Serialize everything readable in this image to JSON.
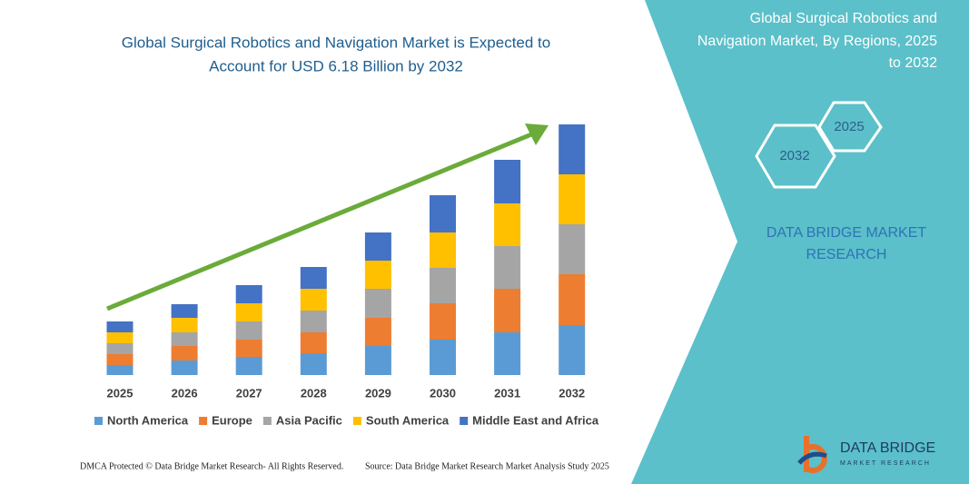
{
  "chart_data": {
    "type": "bar",
    "stacked": true,
    "title": [
      "Global Surgical Robotics and Navigation Market is Expected to",
      "Account for USD 6.18 Billion by 2032"
    ],
    "categories": [
      "2025",
      "2026",
      "2027",
      "2028",
      "2029",
      "2030",
      "2031",
      "2032"
    ],
    "series": [
      {
        "name": "North America",
        "color": "#5b9bd5",
        "values": [
          11,
          16,
          20,
          24,
          32,
          39,
          47,
          55
        ]
      },
      {
        "name": "Europe",
        "color": "#ed7d31",
        "values": [
          12,
          16,
          19,
          23,
          31,
          40,
          48,
          56
        ]
      },
      {
        "name": "Asia Pacific",
        "color": "#a5a5a5",
        "values": [
          12,
          15,
          20,
          24,
          32,
          39,
          47,
          55
        ]
      },
      {
        "name": "South America",
        "color": "#ffc000",
        "values": [
          12,
          16,
          20,
          24,
          31,
          39,
          47,
          55
        ]
      },
      {
        "name": "Middle East and Africa",
        "color": "#4472c4",
        "values": [
          12,
          15,
          20,
          24,
          31,
          41,
          48,
          55
        ]
      }
    ],
    "ylim": [
      0,
      276
    ]
  },
  "panel": {
    "title": [
      "Global Surgical Robotics and",
      "Navigation Market, By Regions, 2025",
      "to 2032"
    ],
    "hexagons": [
      "2025",
      "2032"
    ],
    "brand": [
      "DATA BRIDGE MARKET",
      "RESEARCH"
    ]
  },
  "logo": {
    "name": "DATA BRIDGE",
    "tagline": "MARKET RESEARCH"
  },
  "footer": {
    "left": "DMCA Protected © Data Bridge Market Research- All Rights Reserved.",
    "right": "Source: Data Bridge Market Research Market Analysis Study 2025"
  }
}
